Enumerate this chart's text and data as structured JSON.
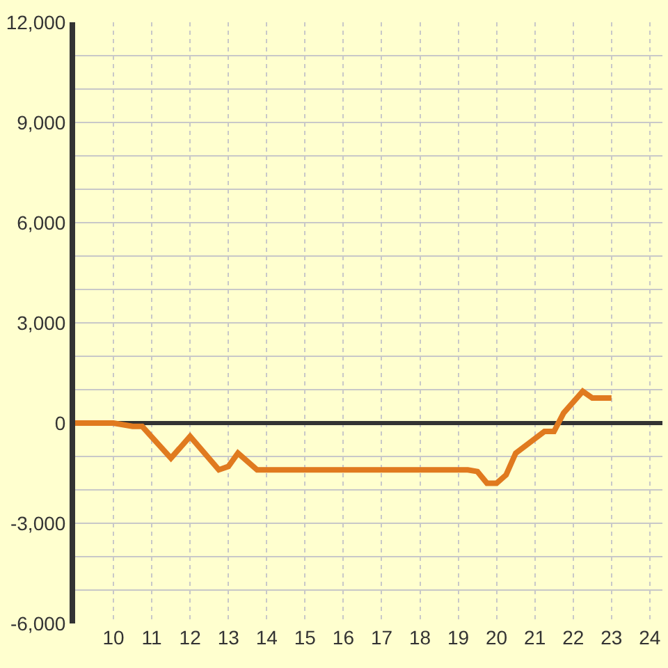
{
  "chart_data": {
    "type": "line",
    "x": [
      9,
      10,
      10.5,
      10.75,
      11.5,
      12,
      12.75,
      13,
      13.25,
      13.75,
      19.25,
      19.5,
      19.75,
      20,
      20.25,
      20.5,
      21.25,
      21.5,
      21.75,
      22.25,
      22.5,
      23
    ],
    "series": [
      {
        "color": "#e07a1f",
        "values": [
          0,
          0,
          -100,
          -100,
          -1050,
          -400,
          -1400,
          -1300,
          -900,
          -1400,
          -1400,
          -1450,
          -1800,
          -1800,
          -1550,
          -900,
          -250,
          -250,
          300,
          950,
          750,
          750
        ]
      }
    ],
    "xlim": [
      9,
      24.33
    ],
    "xticks": [
      10,
      11,
      12,
      13,
      14,
      15,
      16,
      17,
      18,
      19,
      20,
      21,
      22,
      23,
      24
    ],
    "ylim": [
      -6000,
      12000
    ],
    "yticks": [
      {
        "value": -6000,
        "label": "-6,000"
      },
      {
        "value": -5000,
        "label": null
      },
      {
        "value": -4000,
        "label": null
      },
      {
        "value": -3000,
        "label": "-3,000"
      },
      {
        "value": -2000,
        "label": null
      },
      {
        "value": -1000,
        "label": null
      },
      0,
      {
        "value": 1000,
        "label": null
      },
      {
        "value": 2000,
        "label": null
      },
      {
        "value": 3000,
        "label": "3,000"
      },
      {
        "value": 4000,
        "label": null
      },
      {
        "value": 5000,
        "label": null
      },
      {
        "value": 6000,
        "label": "6,000"
      },
      {
        "value": 7000,
        "label": null
      },
      {
        "value": 8000,
        "label": null
      },
      {
        "value": 9000,
        "label": "9,000"
      },
      {
        "value": 10000,
        "label": null
      },
      {
        "value": 11000,
        "label": null
      },
      {
        "value": 12000,
        "label": "12,000"
      }
    ],
    "grid": true,
    "marker": "none",
    "line_style": "solid"
  }
}
